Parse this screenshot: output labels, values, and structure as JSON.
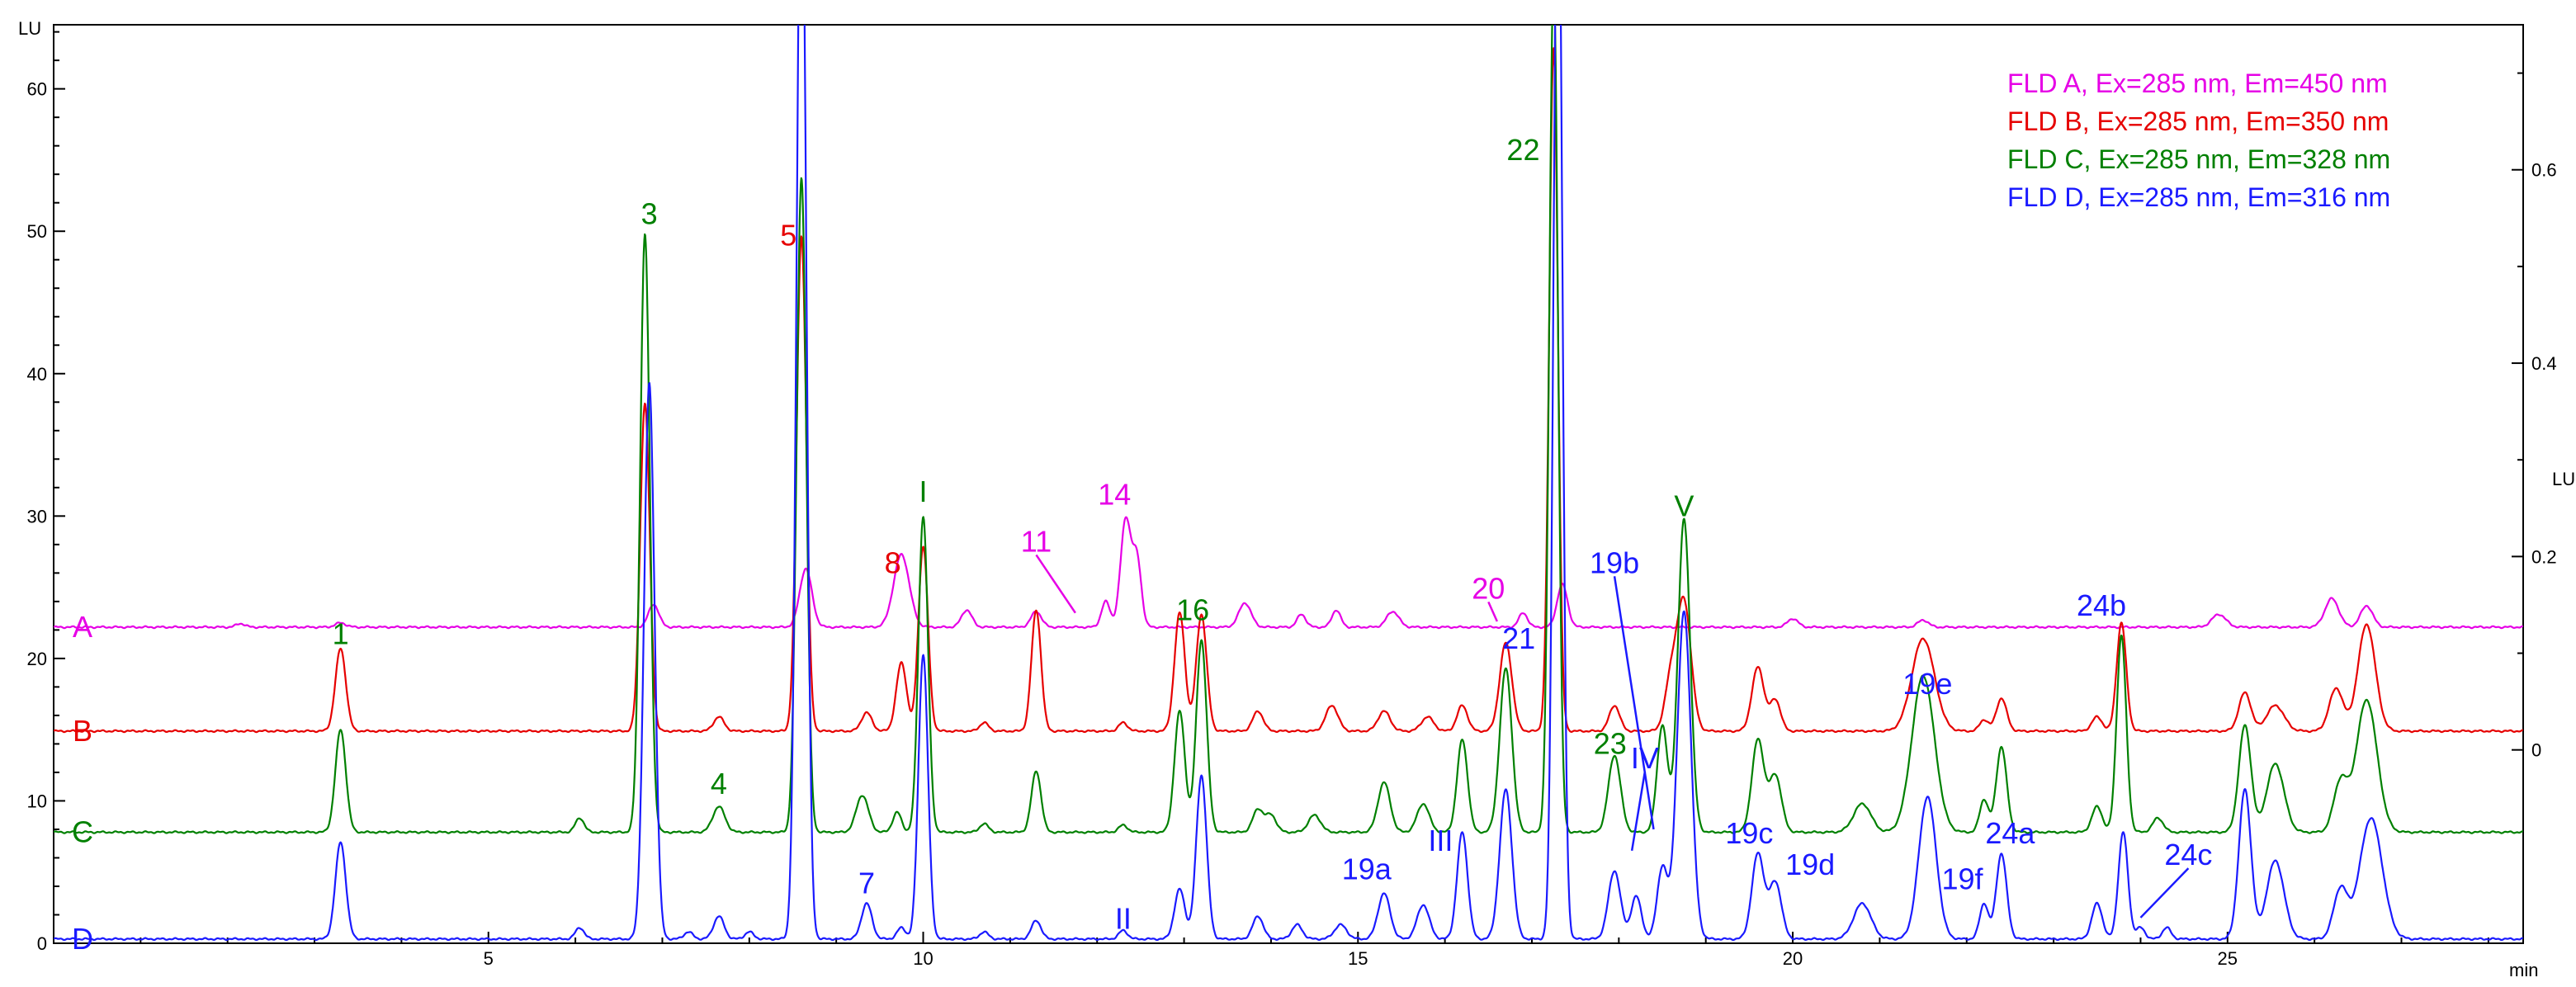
{
  "chart_data": {
    "type": "line",
    "title": "",
    "xlabel": "min",
    "ylabel_left": "LU",
    "ylabel_right": "LU",
    "xlim": [
      0,
      28.4
    ],
    "ylim_left": [
      0,
      64.5
    ],
    "ylim_right": [
      -0.2,
      0.75
    ],
    "x_ticks": [
      5,
      10,
      15,
      20,
      25
    ],
    "y_ticks_left": [
      0,
      10,
      20,
      30,
      40,
      50,
      60
    ],
    "y_ticks_right": [
      0,
      0.2,
      0.4,
      0.6
    ],
    "grid": false,
    "legend_position": "top-right",
    "legend": [
      {
        "text": "FLD A, Ex=285 nm, Em=450 nm",
        "color": "#e600e6"
      },
      {
        "text": "FLD B, Ex=285 nm, Em=350 nm",
        "color": "#e60000"
      },
      {
        "text": "FLD C, Ex=285 nm, Em=328 nm",
        "color": "#008000"
      },
      {
        "text": "FLD D, Ex=285 nm, Em=316 nm",
        "color": "#1a1aff"
      }
    ],
    "series": [
      {
        "name": "A",
        "color": "#e600e6",
        "baseline": 22.2,
        "peaks": [
          [
            2.15,
            0.25,
            0.05
          ],
          [
            3.3,
            0.3,
            0.06
          ],
          [
            6.9,
            1.6,
            0.06
          ],
          [
            8.65,
            4.1,
            0.07
          ],
          [
            9.75,
            5.1,
            0.09
          ],
          [
            10.5,
            1.2,
            0.06
          ],
          [
            11.3,
            1.1,
            0.06
          ],
          [
            12.1,
            1.8,
            0.05
          ],
          [
            12.33,
            7.6,
            0.06
          ],
          [
            12.46,
            4.6,
            0.05
          ],
          [
            13.7,
            1.7,
            0.07
          ],
          [
            14.35,
            0.9,
            0.05
          ],
          [
            14.75,
            1.2,
            0.05
          ],
          [
            15.4,
            1.1,
            0.07
          ],
          [
            16.9,
            1.0,
            0.05
          ],
          [
            17.35,
            3.0,
            0.06
          ],
          [
            20.0,
            0.6,
            0.06
          ],
          [
            21.5,
            0.5,
            0.06
          ],
          [
            24.9,
            0.9,
            0.08
          ],
          [
            26.2,
            2.0,
            0.08
          ],
          [
            26.6,
            1.5,
            0.07
          ]
        ]
      },
      {
        "name": "B",
        "color": "#e60000",
        "baseline": 14.9,
        "peaks": [
          [
            3.3,
            5.8,
            0.06
          ],
          [
            6.8,
            23.0,
            0.055
          ],
          [
            7.65,
            1.0,
            0.06
          ],
          [
            8.6,
            34.8,
            0.055
          ],
          [
            9.35,
            1.3,
            0.06
          ],
          [
            9.75,
            4.8,
            0.06
          ],
          [
            10.0,
            13.0,
            0.055
          ],
          [
            10.7,
            0.6,
            0.05
          ],
          [
            11.3,
            8.5,
            0.055
          ],
          [
            12.3,
            0.6,
            0.05
          ],
          [
            12.95,
            8.3,
            0.06
          ],
          [
            13.2,
            8.2,
            0.06
          ],
          [
            13.85,
            1.4,
            0.06
          ],
          [
            14.7,
            1.8,
            0.07
          ],
          [
            15.3,
            1.4,
            0.07
          ],
          [
            15.8,
            1.0,
            0.07
          ],
          [
            16.2,
            1.8,
            0.06
          ],
          [
            16.7,
            6.2,
            0.07
          ],
          [
            17.25,
            48.0,
            0.05
          ],
          [
            17.95,
            1.8,
            0.06
          ],
          [
            18.6,
            3.5,
            0.07
          ],
          [
            18.75,
            9.0,
            0.08
          ],
          [
            19.6,
            4.5,
            0.07
          ],
          [
            19.8,
            2.2,
            0.06
          ],
          [
            21.5,
            6.5,
            0.13
          ],
          [
            22.2,
            0.8,
            0.05
          ],
          [
            22.4,
            2.3,
            0.06
          ],
          [
            23.5,
            1.0,
            0.06
          ],
          [
            23.78,
            7.6,
            0.055
          ],
          [
            25.2,
            2.7,
            0.07
          ],
          [
            25.55,
            1.8,
            0.1
          ],
          [
            26.25,
            3.0,
            0.08
          ],
          [
            26.6,
            7.5,
            0.1
          ]
        ]
      },
      {
        "name": "C",
        "color": "#008000",
        "baseline": 7.8,
        "peaks": [
          [
            3.3,
            7.2,
            0.06
          ],
          [
            6.05,
            1.0,
            0.05
          ],
          [
            6.8,
            42.0,
            0.055
          ],
          [
            7.65,
            1.8,
            0.07
          ],
          [
            8.6,
            46.0,
            0.055
          ],
          [
            9.3,
            2.6,
            0.07
          ],
          [
            9.7,
            1.4,
            0.05
          ],
          [
            10.0,
            22.2,
            0.055
          ],
          [
            10.7,
            0.6,
            0.05
          ],
          [
            11.3,
            4.3,
            0.055
          ],
          [
            12.3,
            0.5,
            0.05
          ],
          [
            12.95,
            8.5,
            0.06
          ],
          [
            13.2,
            13.5,
            0.06
          ],
          [
            13.85,
            1.6,
            0.06
          ],
          [
            14.0,
            1.2,
            0.06
          ],
          [
            14.5,
            1.2,
            0.07
          ],
          [
            15.3,
            3.5,
            0.07
          ],
          [
            15.75,
            2.0,
            0.07
          ],
          [
            16.2,
            6.5,
            0.06
          ],
          [
            16.7,
            11.5,
            0.07
          ],
          [
            17.25,
            60.0,
            0.05
          ],
          [
            17.95,
            5.4,
            0.07
          ],
          [
            18.5,
            7.5,
            0.06
          ],
          [
            18.75,
            22.0,
            0.07
          ],
          [
            19.6,
            6.5,
            0.07
          ],
          [
            19.8,
            4.0,
            0.07
          ],
          [
            20.8,
            2.0,
            0.1
          ],
          [
            21.5,
            11.0,
            0.13
          ],
          [
            22.2,
            2.3,
            0.05
          ],
          [
            22.4,
            6.0,
            0.06
          ],
          [
            23.5,
            1.8,
            0.06
          ],
          [
            23.78,
            13.8,
            0.055
          ],
          [
            24.2,
            1.0,
            0.06
          ],
          [
            25.2,
            7.5,
            0.07
          ],
          [
            25.55,
            4.8,
            0.1
          ],
          [
            26.3,
            3.5,
            0.08
          ],
          [
            26.6,
            9.3,
            0.12
          ]
        ]
      },
      {
        "name": "D",
        "color": "#1a1aff",
        "baseline": 0.3,
        "peaks": [
          [
            3.3,
            6.8,
            0.06
          ],
          [
            6.05,
            0.8,
            0.05
          ],
          [
            6.85,
            39.0,
            0.06
          ],
          [
            7.3,
            0.5,
            0.05
          ],
          [
            7.65,
            1.6,
            0.06
          ],
          [
            8.0,
            0.5,
            0.05
          ],
          [
            8.6,
            80.0,
            0.055
          ],
          [
            9.35,
            2.5,
            0.06
          ],
          [
            9.75,
            0.8,
            0.05
          ],
          [
            10.0,
            20.0,
            0.055
          ],
          [
            10.7,
            0.5,
            0.05
          ],
          [
            11.3,
            1.3,
            0.055
          ],
          [
            12.3,
            0.6,
            0.05
          ],
          [
            12.95,
            3.5,
            0.06
          ],
          [
            13.2,
            11.5,
            0.06
          ],
          [
            13.85,
            1.6,
            0.06
          ],
          [
            14.3,
            1.0,
            0.06
          ],
          [
            14.8,
            1.0,
            0.07
          ],
          [
            15.3,
            3.2,
            0.07
          ],
          [
            15.75,
            2.4,
            0.07
          ],
          [
            16.2,
            7.5,
            0.06
          ],
          [
            16.7,
            10.5,
            0.07
          ],
          [
            17.3,
            80.0,
            0.05
          ],
          [
            17.95,
            4.8,
            0.07
          ],
          [
            18.2,
            3.0,
            0.06
          ],
          [
            18.5,
            5.0,
            0.06
          ],
          [
            18.75,
            23.0,
            0.08
          ],
          [
            19.6,
            6.0,
            0.07
          ],
          [
            19.8,
            4.0,
            0.07
          ],
          [
            20.8,
            2.5,
            0.1
          ],
          [
            21.55,
            10.0,
            0.1
          ],
          [
            22.2,
            2.5,
            0.05
          ],
          [
            22.4,
            6.0,
            0.06
          ],
          [
            23.5,
            2.5,
            0.06
          ],
          [
            23.8,
            7.5,
            0.055
          ],
          [
            24.0,
            0.8,
            0.05
          ],
          [
            24.3,
            0.8,
            0.05
          ],
          [
            25.2,
            10.5,
            0.07
          ],
          [
            25.55,
            5.5,
            0.1
          ],
          [
            26.3,
            3.5,
            0.08
          ],
          [
            26.65,
            8.5,
            0.13
          ]
        ]
      }
    ],
    "trace_labels": [
      {
        "text": "A",
        "series": "A"
      },
      {
        "text": "B",
        "series": "B"
      },
      {
        "text": "C",
        "series": "C"
      },
      {
        "text": "D",
        "series": "D"
      }
    ],
    "annotations": [
      {
        "text": "1",
        "x": 3.3,
        "y": 21.0,
        "color": "#008000"
      },
      {
        "text": "3",
        "x": 6.85,
        "y": 50.5,
        "color": "#008000"
      },
      {
        "text": "4",
        "x": 7.65,
        "y": 10.5,
        "color": "#008000"
      },
      {
        "text": "5",
        "x": 8.45,
        "y": 49.0,
        "color": "#e60000"
      },
      {
        "text": "7",
        "x": 9.35,
        "y": 3.5,
        "color": "#1a1aff"
      },
      {
        "text": "8",
        "x": 9.65,
        "y": 26.0,
        "color": "#e60000"
      },
      {
        "text": "I",
        "x": 10.0,
        "y": 31.0,
        "color": "#008000"
      },
      {
        "text": "11",
        "x": 11.3,
        "y": 27.5,
        "color": "#e600e6",
        "leader_to": [
          11.75,
          23.2
        ]
      },
      {
        "text": "14",
        "x": 12.2,
        "y": 30.8,
        "color": "#e600e6"
      },
      {
        "text": "II",
        "x": 12.3,
        "y": 1.0,
        "color": "#1a1aff"
      },
      {
        "text": "16",
        "x": 13.1,
        "y": 22.7,
        "color": "#008000"
      },
      {
        "text": "19a",
        "x": 15.1,
        "y": 4.5,
        "color": "#1a1aff"
      },
      {
        "text": "III",
        "x": 15.95,
        "y": 6.5,
        "color": "#1a1aff"
      },
      {
        "text": "20",
        "x": 16.5,
        "y": 24.2,
        "color": "#e600e6",
        "leader_to": [
          16.6,
          22.6
        ]
      },
      {
        "text": "21",
        "x": 16.85,
        "y": 20.7,
        "color": "#1a1aff"
      },
      {
        "text": "22",
        "x": 16.9,
        "y": 55.0,
        "color": "#008000"
      },
      {
        "text": "23",
        "x": 17.9,
        "y": 13.3,
        "color": "#008000"
      },
      {
        "text": "IV",
        "x": 18.3,
        "y": 12.3,
        "color": "#1a1aff",
        "leader_to": [
          18.15,
          6.5
        ]
      },
      {
        "text": "19b",
        "x": 17.95,
        "y": 26.0,
        "color": "#1a1aff",
        "leader_to": [
          18.4,
          8.0
        ]
      },
      {
        "text": "V",
        "x": 18.75,
        "y": 30.0,
        "color": "#008000"
      },
      {
        "text": "19c",
        "x": 19.5,
        "y": 7.0,
        "color": "#1a1aff"
      },
      {
        "text": "19d",
        "x": 20.2,
        "y": 4.8,
        "color": "#1a1aff"
      },
      {
        "text": "19e",
        "x": 21.55,
        "y": 17.5,
        "color": "#1a1aff"
      },
      {
        "text": "19f",
        "x": 21.95,
        "y": 3.8,
        "color": "#1a1aff"
      },
      {
        "text": "24a",
        "x": 22.5,
        "y": 7.0,
        "color": "#1a1aff"
      },
      {
        "text": "24b",
        "x": 23.55,
        "y": 23.0,
        "color": "#1a1aff"
      },
      {
        "text": "24c",
        "x": 24.55,
        "y": 5.5,
        "color": "#1a1aff",
        "leader_to": [
          24.0,
          1.8
        ]
      }
    ]
  }
}
